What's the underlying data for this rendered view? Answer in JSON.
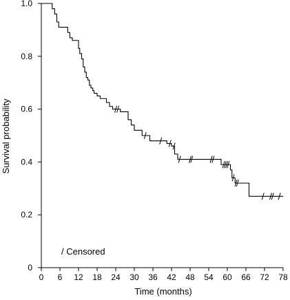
{
  "chart_data": {
    "type": "line",
    "title": "",
    "xlabel": "Time (months)",
    "ylabel": "Survival probability",
    "xlim": [
      0,
      78
    ],
    "ylim": [
      0,
      1.0
    ],
    "xticks": [
      "0",
      "6",
      "12",
      "18",
      "24",
      "30",
      "36",
      "42",
      "48",
      "54",
      "60",
      "66",
      "72",
      "78"
    ],
    "yticks": [
      "0",
      "0.2",
      "0.4",
      "0.6",
      "0.8",
      "1.0"
    ],
    "grid": false,
    "legend": {
      "text": "/ Censored",
      "placement": "bottom-left"
    },
    "series": [
      {
        "style": "step",
        "points": [
          [
            0,
            1.0
          ],
          [
            3.5,
            1.0
          ],
          [
            3.5,
            0.98
          ],
          [
            4.3,
            0.98
          ],
          [
            4.3,
            0.96
          ],
          [
            5.0,
            0.96
          ],
          [
            5.0,
            0.93
          ],
          [
            5.6,
            0.93
          ],
          [
            5.6,
            0.91
          ],
          [
            8.5,
            0.91
          ],
          [
            8.5,
            0.89
          ],
          [
            9.2,
            0.89
          ],
          [
            9.2,
            0.87
          ],
          [
            10.0,
            0.87
          ],
          [
            10.0,
            0.86
          ],
          [
            12.0,
            0.86
          ],
          [
            12.0,
            0.83
          ],
          [
            12.4,
            0.83
          ],
          [
            12.4,
            0.81
          ],
          [
            13.0,
            0.81
          ],
          [
            13.0,
            0.79
          ],
          [
            13.5,
            0.79
          ],
          [
            13.5,
            0.76
          ],
          [
            14.0,
            0.76
          ],
          [
            14.0,
            0.74
          ],
          [
            14.5,
            0.74
          ],
          [
            14.5,
            0.72
          ],
          [
            15.0,
            0.72
          ],
          [
            15.0,
            0.71
          ],
          [
            15.5,
            0.71
          ],
          [
            15.5,
            0.69
          ],
          [
            16.0,
            0.69
          ],
          [
            16.0,
            0.68
          ],
          [
            16.6,
            0.68
          ],
          [
            16.6,
            0.67
          ],
          [
            17.0,
            0.67
          ],
          [
            17.0,
            0.66
          ],
          [
            18.0,
            0.66
          ],
          [
            18.0,
            0.65
          ],
          [
            19.0,
            0.65
          ],
          [
            19.0,
            0.64
          ],
          [
            21.0,
            0.64
          ],
          [
            21.0,
            0.625
          ],
          [
            22.0,
            0.625
          ],
          [
            22.0,
            0.61
          ],
          [
            23.0,
            0.61
          ],
          [
            23.0,
            0.6
          ],
          [
            25.5,
            0.6
          ],
          [
            25.5,
            0.59
          ],
          [
            28.0,
            0.59
          ],
          [
            28.0,
            0.56
          ],
          [
            29.0,
            0.56
          ],
          [
            29.0,
            0.54
          ],
          [
            30.0,
            0.54
          ],
          [
            30.0,
            0.52
          ],
          [
            32.5,
            0.52
          ],
          [
            32.5,
            0.5
          ],
          [
            35.0,
            0.5
          ],
          [
            35.0,
            0.48
          ],
          [
            40.5,
            0.48
          ],
          [
            40.5,
            0.47
          ],
          [
            42.0,
            0.47
          ],
          [
            42.0,
            0.46
          ],
          [
            43.0,
            0.46
          ],
          [
            43.0,
            0.43
          ],
          [
            44.0,
            0.43
          ],
          [
            44.0,
            0.41
          ],
          [
            58.0,
            0.41
          ],
          [
            58.0,
            0.39
          ],
          [
            61.0,
            0.39
          ],
          [
            61.0,
            0.37
          ],
          [
            61.5,
            0.37
          ],
          [
            61.5,
            0.34
          ],
          [
            62.5,
            0.34
          ],
          [
            62.5,
            0.32
          ],
          [
            67.0,
            0.32
          ],
          [
            67.0,
            0.27
          ],
          [
            78.0,
            0.27
          ]
        ],
        "censored": [
          [
            24.0,
            0.6
          ],
          [
            24.7,
            0.6
          ],
          [
            33.5,
            0.5
          ],
          [
            38.5,
            0.48
          ],
          [
            41.5,
            0.47
          ],
          [
            42.8,
            0.46
          ],
          [
            44.6,
            0.41
          ],
          [
            48.0,
            0.41
          ],
          [
            48.5,
            0.41
          ],
          [
            54.8,
            0.41
          ],
          [
            55.4,
            0.41
          ],
          [
            58.8,
            0.39
          ],
          [
            59.3,
            0.39
          ],
          [
            59.8,
            0.39
          ],
          [
            60.3,
            0.39
          ],
          [
            61.9,
            0.34
          ],
          [
            62.8,
            0.32
          ],
          [
            63.3,
            0.32
          ],
          [
            71.5,
            0.27
          ],
          [
            74.0,
            0.27
          ],
          [
            74.6,
            0.27
          ],
          [
            76.8,
            0.27
          ]
        ]
      }
    ]
  }
}
